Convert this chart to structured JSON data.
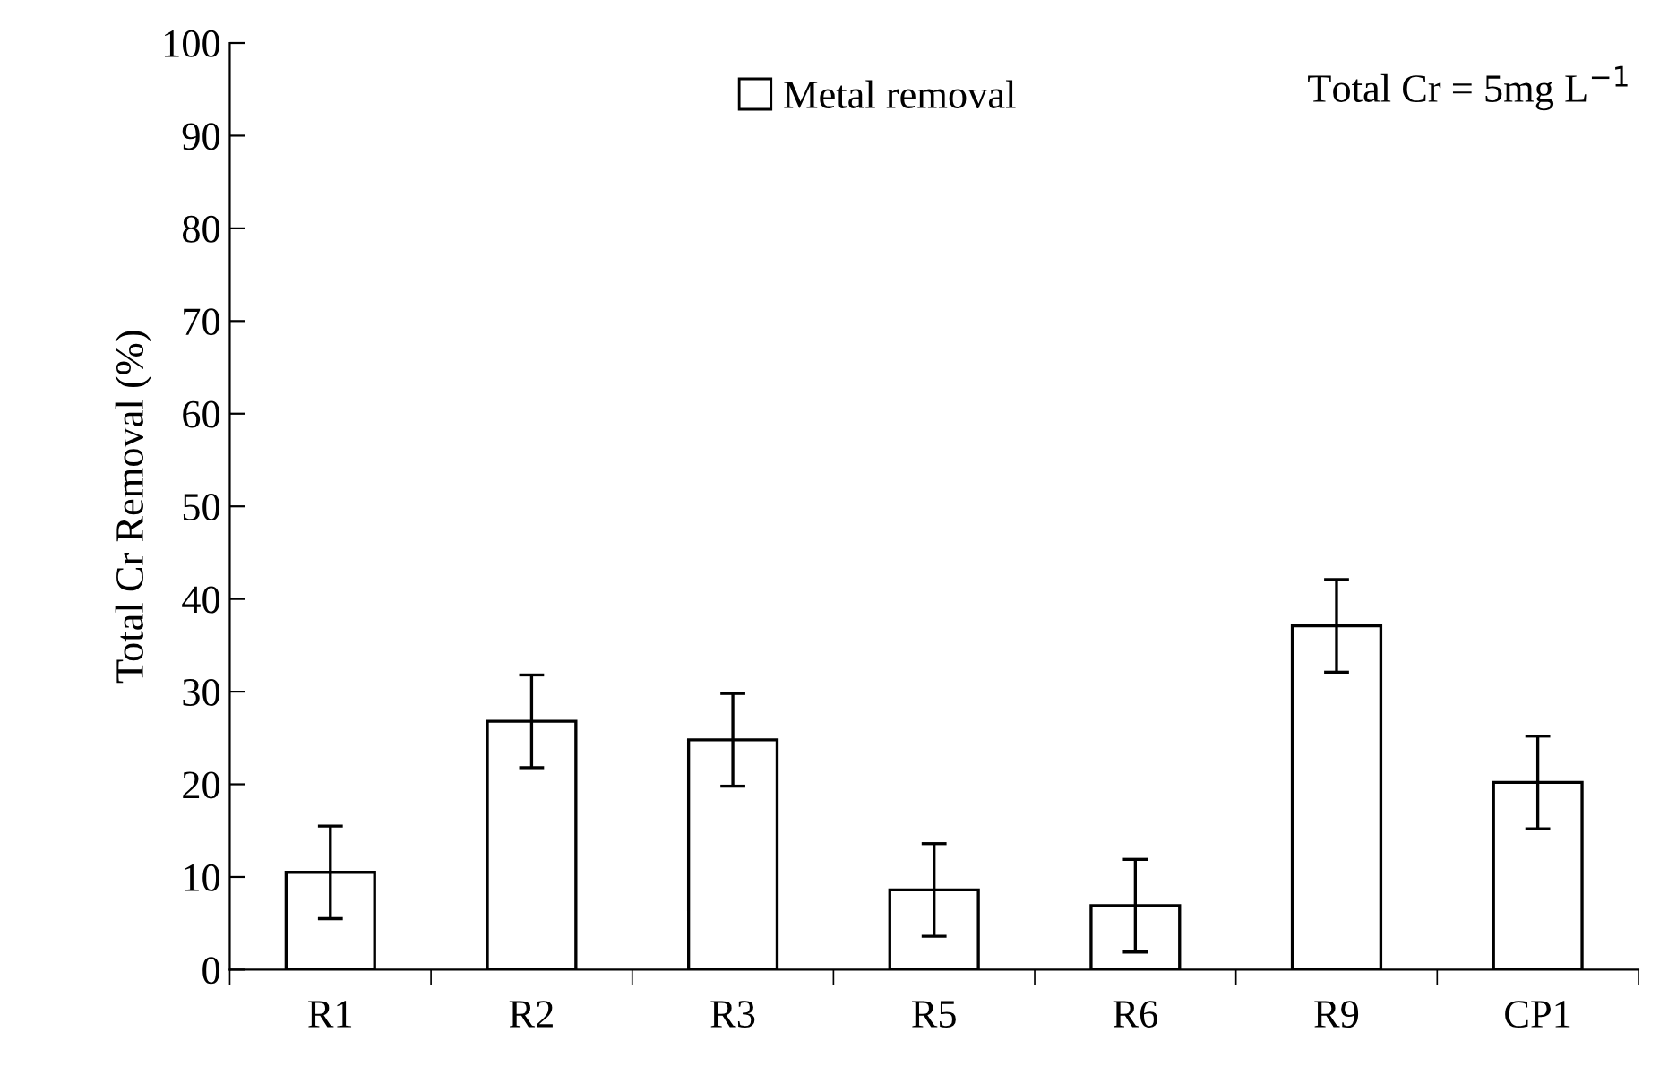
{
  "chart_data": {
    "type": "bar",
    "ylabel": "Total Cr Removal (%)",
    "categories": [
      "R1",
      "R2",
      "R3",
      "R5",
      "R6",
      "R9",
      "CP1"
    ],
    "series": [
      {
        "name": "Metal removal",
        "color": "#ffffff",
        "values": [
          10.5,
          26.8,
          24.8,
          8.6,
          6.9,
          37.1,
          20.2
        ],
        "errors": [
          5,
          5,
          5,
          5,
          5,
          5,
          5
        ]
      }
    ],
    "ylim": [
      0,
      100
    ],
    "yticks": [
      0,
      10,
      20,
      30,
      40,
      50,
      60,
      70,
      80,
      90,
      100
    ],
    "grid": false,
    "legend": "top",
    "annotations": [
      "Total Cr = 5mg L$^{−1}$"
    ]
  }
}
